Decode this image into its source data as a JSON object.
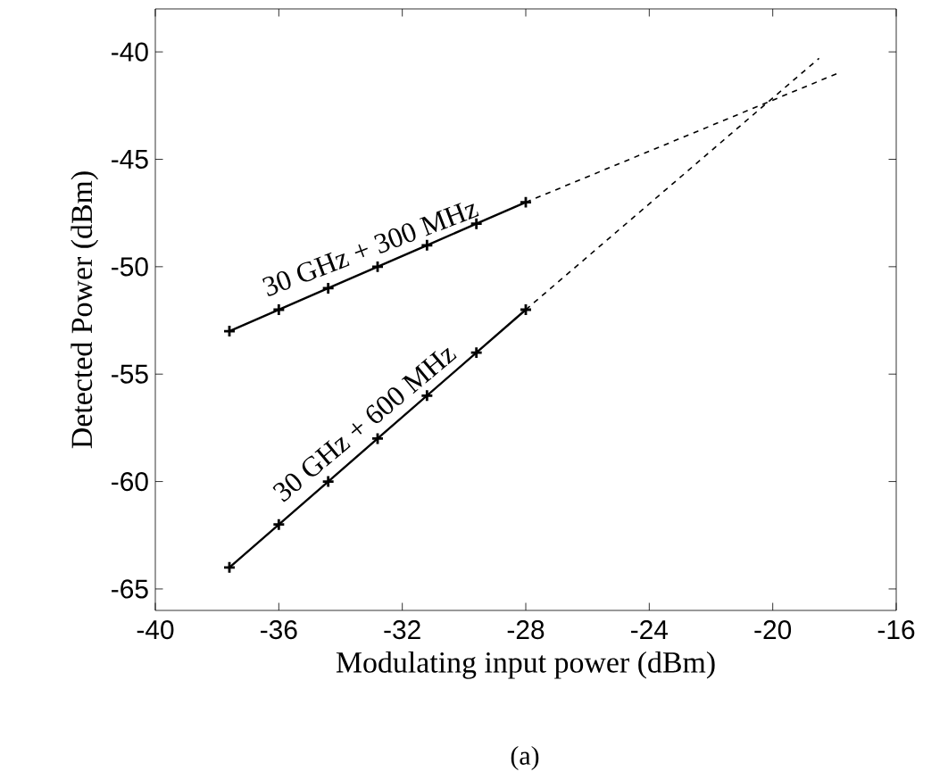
{
  "chart_data": {
    "type": "line",
    "xlabel": "Modulating input power (dBm)",
    "ylabel": "Detected  Power (dBm)",
    "annotations": [
      "(a)"
    ],
    "series": [
      {
        "name": "30 GHz + 300 MHz",
        "color": "#000000",
        "marker": "cross",
        "line_style": "solid",
        "x": [
          -37.6,
          -36,
          -34.4,
          -32.8,
          -31.2,
          -29.6,
          -28
        ],
        "values": [
          -53,
          -52,
          -51,
          -50,
          -49,
          -48,
          -47
        ]
      },
      {
        "name": "30 GHz + 600 MHz",
        "color": "#000000",
        "marker": "cross",
        "line_style": "solid",
        "x": [
          -37.6,
          -36,
          -34.4,
          -32.8,
          -31.2,
          -29.6,
          -28
        ],
        "values": [
          -64,
          -62,
          -60,
          -58,
          -56,
          -54,
          -52
        ]
      },
      {
        "color": "#000000",
        "marker": "none",
        "line_style": "dashed",
        "x": [
          -28,
          -17.9
        ],
        "values": [
          -47,
          -41
        ]
      },
      {
        "color": "#000000",
        "marker": "none",
        "line_style": "dashed",
        "x": [
          -28,
          -18.5
        ],
        "values": [
          -52,
          -40.3
        ]
      }
    ],
    "xlim": [
      -40,
      -16
    ],
    "ylim": [
      -66,
      -38
    ],
    "xticks": [
      -40,
      -36,
      -32,
      -28,
      -24,
      -20,
      -16
    ],
    "yticks": [
      -65,
      -60,
      -55,
      -50,
      -45,
      -40
    ],
    "grid": false,
    "legend": false
  }
}
